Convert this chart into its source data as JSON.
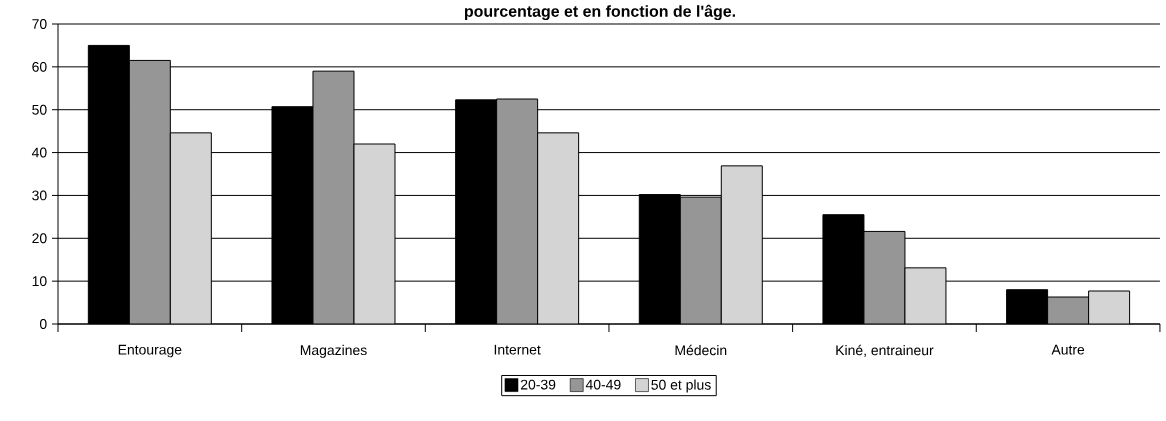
{
  "chart_data": {
    "type": "bar",
    "title": "pourcentage et en fonction de l'âge.",
    "categories": [
      "Entourage",
      "Magazines",
      "Internet",
      "Médecin",
      "Kiné, entraineur",
      "Autre"
    ],
    "series": [
      {
        "name": "20-39",
        "color": "#000000",
        "values": [
          65,
          50.7,
          52.3,
          30.2,
          25.5,
          8
        ]
      },
      {
        "name": "40-49",
        "color": "#969696",
        "values": [
          61.5,
          59,
          52.5,
          29.6,
          21.6,
          6.3
        ]
      },
      {
        "name": "50 et plus",
        "color": "#d4d4d4",
        "values": [
          44.6,
          42,
          44.6,
          36.9,
          13.1,
          7.7
        ]
      }
    ],
    "ylim": [
      0,
      70
    ],
    "yticks": [
      0,
      10,
      20,
      30,
      40,
      50,
      60,
      70
    ],
    "grid": "y",
    "legend": "bottom"
  }
}
